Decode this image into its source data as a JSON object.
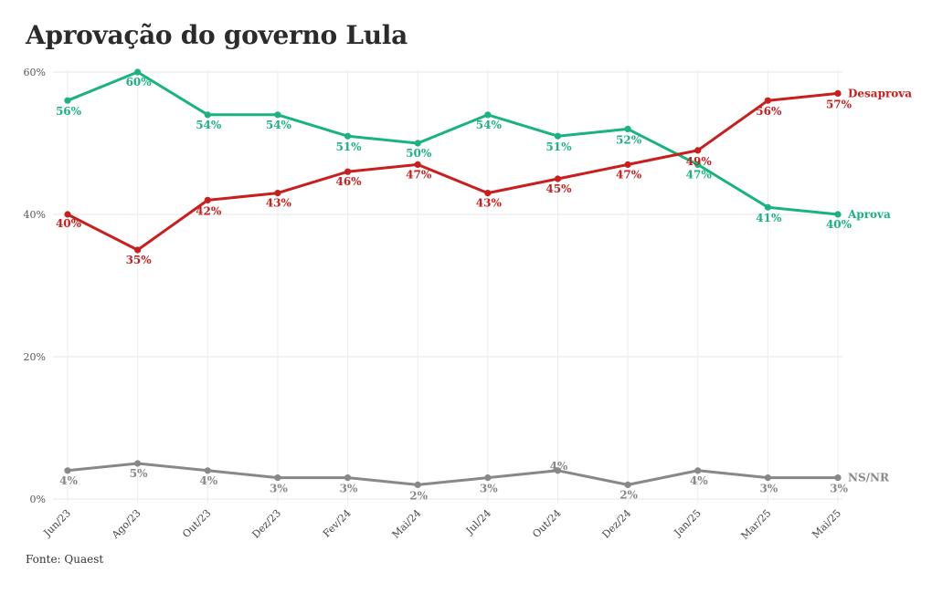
{
  "title": "Aprovação do governo Lula",
  "source": "Fonte: Quaest",
  "chart_data": {
    "type": "line",
    "title": "Aprovação do governo Lula",
    "xlabel": "",
    "ylabel": "",
    "ylim": [
      0,
      60
    ],
    "yticks": [
      0,
      20,
      40,
      60
    ],
    "ytick_labels": [
      "0%",
      "20%",
      "40%",
      "60%"
    ],
    "grid": true,
    "legend": "direct labels at right end of lines",
    "categories": [
      "Jun/23",
      "Ago/23",
      "Out/23",
      "Dez/23",
      "Fev/24",
      "Mai/24",
      "Jul/24",
      "Out/24",
      "Dez/24",
      "Jan/25",
      "Mar/25",
      "Mai/25"
    ],
    "series": [
      {
        "name": "Aprova",
        "color": "#1ab37d",
        "values": [
          56,
          60,
          54,
          54,
          51,
          50,
          54,
          51,
          52,
          47,
          41,
          40
        ],
        "labels": [
          "56%",
          "60%",
          "54%",
          "54%",
          "51%",
          "50%",
          "54%",
          "51%",
          "52%",
          "47%",
          "41%",
          "40%"
        ]
      },
      {
        "name": "Desaprova",
        "color": "#c81e1e",
        "values": [
          40,
          35,
          42,
          43,
          46,
          47,
          43,
          45,
          47,
          49,
          56,
          57
        ],
        "labels": [
          "40%",
          "35%",
          "42%",
          "43%",
          "46%",
          "47%",
          "43%",
          "45%",
          "47%",
          "49%",
          "56%",
          "57%"
        ]
      },
      {
        "name": "NS/NR",
        "color": "#888888",
        "values": [
          4,
          5,
          4,
          3,
          3,
          2,
          3,
          4,
          2,
          4,
          3,
          3
        ],
        "labels": [
          "4%",
          "5%",
          "4%",
          "3%",
          "3%",
          "2%",
          "3%",
          "4%",
          "2%",
          "4%",
          "3%",
          "3%"
        ]
      }
    ]
  }
}
